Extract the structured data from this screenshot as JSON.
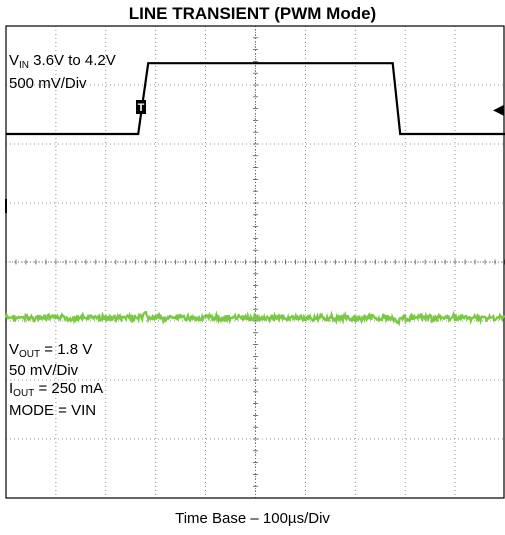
{
  "chart_data": {
    "type": "line",
    "title": "LINE TRANSIENT (PWM Mode)",
    "xlabel": "Time Base – 100µs/Div",
    "x_unit": "µs",
    "xlim": [
      0,
      1000
    ],
    "divisions": {
      "x": 10,
      "y": 8
    },
    "grid": true,
    "trigger_marker": "T",
    "ground_marker": "◀",
    "series": [
      {
        "name": "VIN",
        "color": "#000000",
        "volts_per_div": 0.5,
        "points": [
          [
            0,
            3.6
          ],
          [
            265,
            3.6
          ],
          [
            285,
            4.2
          ],
          [
            775,
            4.2
          ],
          [
            790,
            3.6
          ],
          [
            1000,
            3.6
          ]
        ],
        "annotation": {
          "prefix": "V",
          "sub": "IN",
          "text": " 3.6V to 4.2V",
          "line2": "500 mV/Div"
        }
      },
      {
        "name": "VOUT",
        "color": "#7ac943",
        "volts_per_div": 0.05,
        "value": 1.8,
        "annotation": {
          "vout_prefix": "V",
          "vout_sub": "OUT",
          "vout_text": " = 1.8 V",
          "scale": "50 mV/Div",
          "iout_prefix": "I",
          "iout_sub": "OUT",
          "iout_text": " = 250 mA",
          "mode": "MODE = VIN"
        }
      }
    ]
  }
}
